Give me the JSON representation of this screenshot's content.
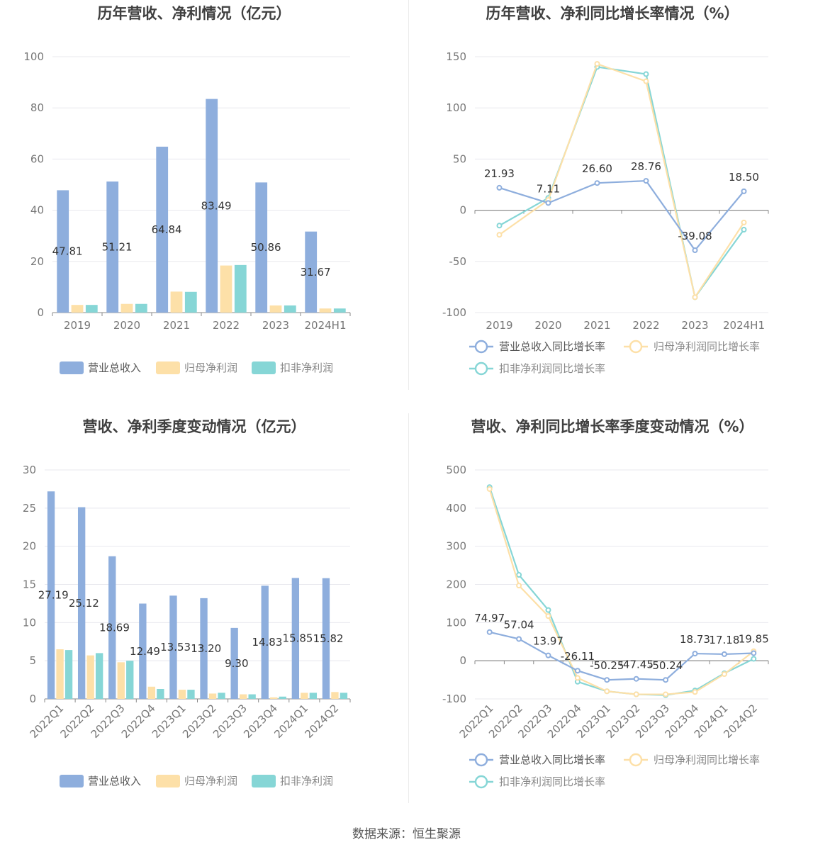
{
  "source": "数据来源：恒生聚源",
  "colors": {
    "revenue": "#8eaedd",
    "parent_profit": "#fde0a8",
    "deducted_profit": "#86d6d6",
    "grid": "#e8e8ee",
    "axis": "#888888"
  },
  "chart_data": [
    {
      "id": "annual-amount",
      "type": "bar",
      "title": "历年营收、净利情况（亿元）",
      "categories": [
        "2019",
        "2020",
        "2021",
        "2022",
        "2023",
        "2024H1"
      ],
      "ylim": [
        0,
        100
      ],
      "yticks": [
        0,
        20,
        40,
        60,
        80,
        100
      ],
      "ytick_labels": [
        "0",
        "20",
        "40",
        "60",
        "80",
        "100"
      ],
      "grid": true,
      "legend_position": "bottom",
      "series": [
        {
          "name": "营业总收入",
          "color": "#8eaedd",
          "values": [
            47.81,
            51.21,
            64.84,
            83.49,
            50.86,
            31.67
          ],
          "labels": [
            "47.81",
            "51.21",
            "64.84",
            "83.49",
            "50.86",
            "31.67"
          ]
        },
        {
          "name": "归母净利润",
          "color": "#fde0a8",
          "values": [
            3.0,
            3.4,
            8.2,
            18.4,
            2.8,
            1.6
          ]
        },
        {
          "name": "扣非净利润",
          "color": "#86d6d6",
          "values": [
            3.0,
            3.4,
            8.1,
            18.6,
            2.8,
            1.6
          ]
        }
      ]
    },
    {
      "id": "annual-growth",
      "type": "line",
      "title": "历年营收、净利同比增长率情况（%）",
      "categories": [
        "2019",
        "2020",
        "2021",
        "2022",
        "2023",
        "2024H1"
      ],
      "ylim": [
        -100,
        150
      ],
      "yticks": [
        -100,
        -50,
        0,
        50,
        100,
        150
      ],
      "ytick_labels": [
        "-100",
        "-50",
        "0",
        "50",
        "100",
        "150"
      ],
      "grid": true,
      "legend_position": "bottom",
      "series": [
        {
          "name": "营业总收入同比增长率",
          "color": "#8eaedd",
          "values": [
            21.93,
            7.11,
            26.6,
            28.76,
            -39.08,
            18.5
          ],
          "labels": [
            "21.93",
            "7.11",
            "26.60",
            "28.76",
            "-39.08",
            "18.50"
          ]
        },
        {
          "name": "归母净利润同比增长率",
          "color": "#fde0a8",
          "values": [
            -24,
            10,
            143,
            126,
            -85,
            -12
          ]
        },
        {
          "name": "扣非净利润同比增长率",
          "color": "#86d6d6",
          "values": [
            -15,
            12,
            140,
            133,
            -85,
            -19
          ]
        }
      ]
    },
    {
      "id": "quarterly-amount",
      "type": "bar",
      "title": "营收、净利季度变动情况（亿元）",
      "categories": [
        "2022Q1",
        "2022Q2",
        "2022Q3",
        "2022Q4",
        "2023Q1",
        "2023Q2",
        "2023Q3",
        "2023Q4",
        "2024Q1",
        "2024Q2"
      ],
      "ylim": [
        0,
        30
      ],
      "yticks": [
        0,
        5,
        10,
        15,
        20,
        25,
        30
      ],
      "ytick_labels": [
        "0",
        "5",
        "10",
        "15",
        "20",
        "25",
        "30"
      ],
      "grid": true,
      "legend_position": "bottom",
      "series": [
        {
          "name": "营业总收入",
          "color": "#8eaedd",
          "values": [
            27.19,
            25.12,
            18.69,
            12.49,
            13.53,
            13.2,
            9.3,
            14.83,
            15.85,
            15.82
          ],
          "labels": [
            "27.19",
            "25.12",
            "18.69",
            "12.49",
            "13.53",
            "13.20",
            "9.30",
            "14.83",
            "15.85",
            "15.82"
          ]
        },
        {
          "name": "归母净利润",
          "color": "#fde0a8",
          "values": [
            6.5,
            5.7,
            4.8,
            1.6,
            1.2,
            0.7,
            0.6,
            0.2,
            0.8,
            0.9
          ]
        },
        {
          "name": "扣非净利润",
          "color": "#86d6d6",
          "values": [
            6.4,
            6.0,
            5.0,
            1.3,
            1.2,
            0.8,
            0.6,
            0.3,
            0.8,
            0.8
          ]
        }
      ]
    },
    {
      "id": "quarterly-growth",
      "type": "line",
      "title": "营收、净利同比增长率季度变动情况（%）",
      "categories": [
        "2022Q1",
        "2022Q2",
        "2022Q3",
        "2022Q4",
        "2023Q1",
        "2023Q2",
        "2023Q3",
        "2023Q4",
        "2024Q1",
        "2024Q2"
      ],
      "ylim": [
        -100,
        500
      ],
      "yticks": [
        -100,
        0,
        100,
        200,
        300,
        400,
        500
      ],
      "ytick_labels": [
        "-100",
        "0",
        "100",
        "200",
        "300",
        "400",
        "500"
      ],
      "grid": true,
      "legend_position": "bottom",
      "series": [
        {
          "name": "营业总收入同比增长率",
          "color": "#8eaedd",
          "values": [
            74.97,
            57.04,
            13.97,
            -26.11,
            -50.25,
            -47.45,
            -50.24,
            18.73,
            17.18,
            19.85
          ],
          "labels": [
            "74.97",
            "57.04",
            "13.97",
            "-26.11",
            "-50.25",
            "-47.45",
            "-50.24",
            "18.73",
            "17.18",
            "19.85"
          ]
        },
        {
          "name": "归母净利润同比增长率",
          "color": "#fde0a8",
          "values": [
            450,
            197,
            117,
            -45,
            -80,
            -88,
            -88,
            -82,
            -35,
            25
          ]
        },
        {
          "name": "扣非净利润同比增长率",
          "color": "#86d6d6",
          "values": [
            455,
            225,
            133,
            -55,
            -80,
            -88,
            -90,
            -78,
            -33,
            5
          ]
        }
      ]
    }
  ]
}
